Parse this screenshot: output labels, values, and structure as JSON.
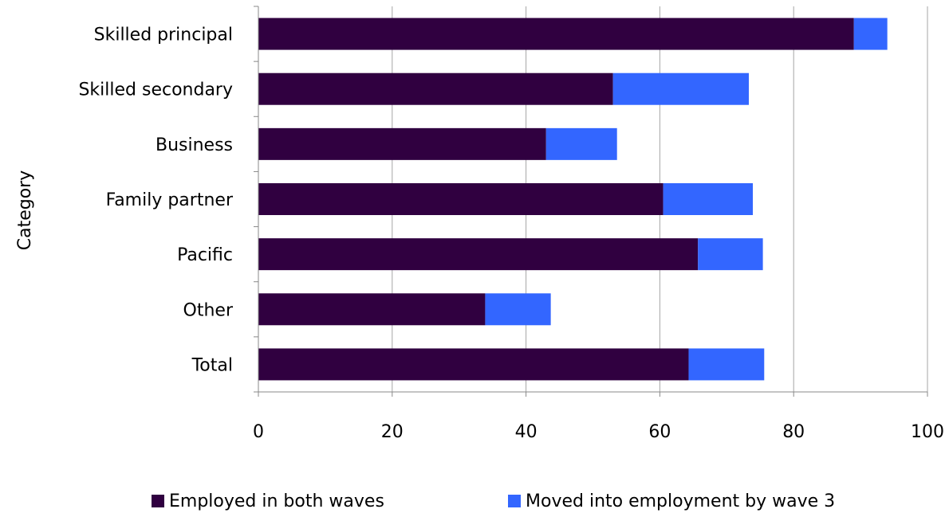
{
  "chart_data": {
    "type": "bar",
    "orientation": "horizontal",
    "stacked": true,
    "ylabel": "Category",
    "xlabel": "",
    "xlim": [
      0,
      100
    ],
    "xticks": [
      "0",
      "20",
      "40",
      "60",
      "80",
      "100"
    ],
    "grid": "vertical",
    "legend_position": "bottom",
    "categories": [
      "Skilled principal",
      "Skilled secondary",
      "Business",
      "Family partner",
      "Pacific",
      "Other",
      "Total"
    ],
    "series": [
      {
        "name": "Employed in both waves",
        "color": "#300040",
        "values": [
          89,
          53,
          43,
          60.5,
          65.7,
          33.9,
          64.3
        ]
      },
      {
        "name": "Moved into employment by wave 3",
        "color": "#3366ff",
        "values": [
          5,
          20.3,
          10.6,
          13.4,
          9.7,
          9.8,
          11.3
        ]
      }
    ]
  }
}
